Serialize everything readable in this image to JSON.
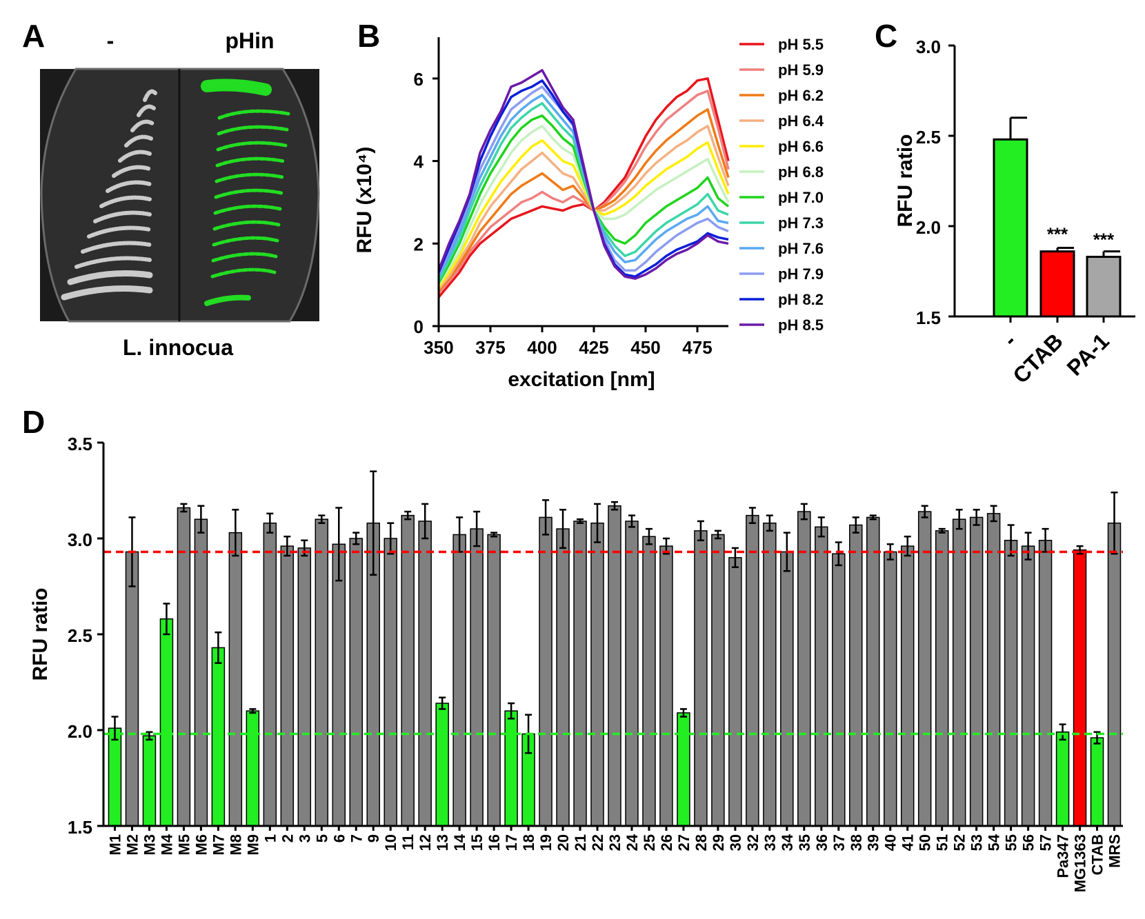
{
  "panelA": {
    "label": "A",
    "left_label": "-",
    "right_label": "pHin",
    "caption": "L. innocua"
  },
  "colors": {
    "green": "#22ee22",
    "red": "#ff0000",
    "grey": "#808080",
    "plate_growth_left": "#dcdcdc",
    "plate_growth_right": "#22dd22"
  },
  "chart_data": [
    {
      "id": "B",
      "label": "B",
      "type": "line",
      "xlabel": "excitation [nm]",
      "ylabel": "RFU (x10⁴)",
      "xlim": [
        350,
        490
      ],
      "ylim": [
        0,
        7
      ],
      "xticks": [
        "350",
        "375",
        "400",
        "425",
        "450",
        "475"
      ],
      "yticks": [
        "0",
        "2",
        "4",
        "6"
      ],
      "x": [
        350,
        355,
        360,
        365,
        370,
        375,
        380,
        385,
        390,
        395,
        400,
        405,
        410,
        415,
        420,
        425,
        430,
        435,
        440,
        445,
        450,
        455,
        460,
        465,
        470,
        475,
        480,
        485,
        490
      ],
      "legend_position": "right",
      "series": [
        {
          "name": "pH 5.5",
          "color": "#e8141b",
          "values": [
            0.7,
            1.0,
            1.3,
            1.7,
            2.0,
            2.2,
            2.4,
            2.6,
            2.7,
            2.8,
            2.9,
            2.85,
            2.8,
            2.9,
            2.95,
            2.8,
            3.0,
            3.3,
            3.6,
            4.1,
            4.6,
            5.0,
            5.3,
            5.55,
            5.7,
            5.95,
            6.0,
            5.0,
            4.0
          ]
        },
        {
          "name": "pH 5.9",
          "color": "#f08080",
          "values": [
            0.8,
            1.1,
            1.4,
            1.8,
            2.1,
            2.4,
            2.6,
            2.8,
            3.0,
            3.1,
            3.25,
            3.1,
            3.0,
            3.15,
            3.0,
            2.8,
            2.95,
            3.2,
            3.5,
            3.9,
            4.35,
            4.7,
            5.0,
            5.2,
            5.4,
            5.6,
            5.7,
            4.8,
            3.8
          ]
        },
        {
          "name": "pH 6.2",
          "color": "#ef7a16",
          "values": [
            0.85,
            1.15,
            1.5,
            1.9,
            2.3,
            2.6,
            2.9,
            3.2,
            3.4,
            3.55,
            3.7,
            3.5,
            3.3,
            3.4,
            3.1,
            2.8,
            2.9,
            3.05,
            3.3,
            3.6,
            3.95,
            4.25,
            4.5,
            4.7,
            4.9,
            5.1,
            5.25,
            4.4,
            3.6
          ]
        },
        {
          "name": "pH 6.4",
          "color": "#f4b183",
          "values": [
            0.9,
            1.2,
            1.6,
            2.0,
            2.5,
            2.9,
            3.2,
            3.5,
            3.8,
            4.0,
            4.2,
            3.95,
            3.7,
            3.6,
            3.2,
            2.8,
            2.8,
            2.95,
            3.15,
            3.4,
            3.7,
            3.95,
            4.15,
            4.35,
            4.5,
            4.7,
            4.85,
            4.1,
            3.4
          ]
        },
        {
          "name": "pH 6.6",
          "color": "#ffee00",
          "values": [
            0.95,
            1.3,
            1.7,
            2.2,
            2.7,
            3.1,
            3.5,
            3.8,
            4.1,
            4.35,
            4.5,
            4.25,
            4.0,
            3.9,
            3.35,
            2.8,
            2.7,
            2.8,
            2.95,
            3.15,
            3.4,
            3.6,
            3.8,
            3.95,
            4.1,
            4.3,
            4.45,
            3.8,
            3.2
          ]
        },
        {
          "name": "pH 6.8",
          "color": "#c6f0c0",
          "values": [
            1.0,
            1.4,
            1.8,
            2.4,
            2.95,
            3.4,
            3.8,
            4.2,
            4.5,
            4.7,
            4.85,
            4.55,
            4.3,
            4.15,
            3.45,
            2.8,
            2.6,
            2.6,
            2.7,
            2.9,
            3.1,
            3.3,
            3.45,
            3.6,
            3.75,
            3.9,
            4.05,
            3.5,
            3.0
          ]
        },
        {
          "name": "pH 7.0",
          "color": "#1fd41f",
          "values": [
            1.05,
            1.5,
            2.0,
            2.6,
            3.2,
            3.7,
            4.1,
            4.5,
            4.8,
            5.0,
            5.1,
            4.85,
            4.55,
            4.35,
            3.55,
            2.8,
            2.4,
            2.1,
            2.0,
            2.2,
            2.5,
            2.7,
            2.9,
            3.05,
            3.2,
            3.35,
            3.6,
            3.1,
            2.9
          ]
        },
        {
          "name": "pH 7.3",
          "color": "#3cd6a8",
          "values": [
            1.1,
            1.6,
            2.1,
            2.8,
            3.4,
            3.9,
            4.4,
            4.8,
            5.05,
            5.25,
            5.4,
            5.1,
            4.8,
            4.55,
            3.65,
            2.8,
            2.3,
            1.95,
            1.7,
            1.8,
            2.05,
            2.3,
            2.5,
            2.65,
            2.8,
            2.95,
            3.2,
            2.8,
            2.7
          ]
        },
        {
          "name": "pH 7.6",
          "color": "#5aa9f0",
          "values": [
            1.2,
            1.7,
            2.25,
            2.95,
            3.6,
            4.1,
            4.6,
            5.0,
            5.25,
            5.45,
            5.6,
            5.3,
            5.0,
            4.7,
            3.75,
            2.8,
            2.2,
            1.8,
            1.55,
            1.6,
            1.85,
            2.1,
            2.3,
            2.45,
            2.6,
            2.7,
            2.9,
            2.55,
            2.5
          ]
        },
        {
          "name": "pH 7.9",
          "color": "#8c9cf0",
          "values": [
            1.25,
            1.8,
            2.4,
            3.05,
            3.8,
            4.3,
            4.8,
            5.25,
            5.45,
            5.65,
            5.8,
            5.5,
            5.2,
            4.85,
            3.8,
            2.8,
            2.1,
            1.6,
            1.35,
            1.35,
            1.55,
            1.8,
            2.0,
            2.2,
            2.35,
            2.5,
            2.6,
            2.4,
            2.3
          ]
        },
        {
          "name": "pH 8.2",
          "color": "#0a1ed8",
          "values": [
            1.3,
            1.9,
            2.5,
            3.15,
            4.0,
            4.6,
            5.1,
            5.55,
            5.7,
            5.8,
            5.95,
            5.6,
            5.2,
            4.9,
            3.85,
            2.8,
            2.0,
            1.5,
            1.25,
            1.2,
            1.35,
            1.5,
            1.7,
            1.85,
            1.95,
            2.05,
            2.25,
            2.15,
            2.1
          ]
        },
        {
          "name": "pH 8.5",
          "color": "#6a1aa8",
          "values": [
            1.35,
            2.0,
            2.55,
            3.2,
            4.2,
            4.75,
            5.2,
            5.8,
            5.9,
            6.05,
            6.2,
            5.75,
            5.3,
            5.0,
            3.9,
            2.8,
            1.95,
            1.45,
            1.2,
            1.15,
            1.25,
            1.4,
            1.6,
            1.75,
            1.85,
            2.0,
            2.2,
            2.05,
            2.0
          ]
        }
      ]
    },
    {
      "id": "C",
      "label": "C",
      "type": "bar",
      "ylabel": "RFU ratio",
      "ylim": [
        1.5,
        3.0
      ],
      "yticks": [
        "1.5",
        "2.0",
        "2.5",
        "3.0"
      ],
      "categories": [
        "-",
        "CTAB",
        "PA-1"
      ],
      "values": [
        2.48,
        1.86,
        1.83
      ],
      "errors": [
        0.12,
        0.02,
        0.03
      ],
      "bar_colors": [
        "#22ee22",
        "#ff0000",
        "#a6a6a6"
      ],
      "annotations": [
        "",
        "***",
        "***"
      ]
    },
    {
      "id": "D",
      "label": "D",
      "type": "bar",
      "ylabel": "RFU ratio",
      "ylim": [
        1.5,
        3.5
      ],
      "yticks": [
        "1.5",
        "2.0",
        "2.5",
        "3.0",
        "3.5"
      ],
      "reference_lines": [
        {
          "value": 2.93,
          "color": "#ff0000"
        },
        {
          "value": 1.98,
          "color": "#22ee22"
        }
      ],
      "categories": [
        "M1",
        "M2",
        "M3",
        "M4",
        "M5",
        "M6",
        "M7",
        "M8",
        "M9",
        "1",
        "2",
        "3",
        "5",
        "6",
        "7",
        "9",
        "10",
        "11",
        "12",
        "13",
        "14",
        "15",
        "16",
        "17",
        "18",
        "19",
        "20",
        "21",
        "22",
        "23",
        "24",
        "25",
        "26",
        "27",
        "28",
        "29",
        "30",
        "32",
        "33",
        "34",
        "35",
        "36",
        "37",
        "38",
        "39",
        "40",
        "41",
        "50",
        "51",
        "52",
        "53",
        "54",
        "55",
        "56",
        "57",
        "Pa347",
        "MG1363",
        "CTAB",
        "MRS"
      ],
      "values": [
        2.01,
        2.93,
        1.97,
        2.58,
        3.16,
        3.1,
        2.43,
        3.03,
        2.1,
        3.08,
        2.96,
        2.95,
        3.1,
        2.97,
        3.0,
        3.08,
        3.0,
        3.12,
        3.09,
        2.14,
        3.02,
        3.05,
        3.02,
        2.1,
        1.98,
        3.11,
        3.05,
        3.09,
        3.08,
        3.17,
        3.09,
        3.01,
        2.96,
        2.09,
        3.04,
        3.02,
        2.9,
        3.12,
        3.08,
        2.93,
        3.14,
        3.06,
        2.92,
        3.07,
        3.11,
        2.93,
        2.96,
        3.14,
        3.04,
        3.1,
        3.11,
        3.13,
        2.99,
        2.96,
        2.99,
        1.99,
        2.94,
        1.96,
        3.08
      ],
      "errors": [
        0.06,
        0.18,
        0.02,
        0.08,
        0.02,
        0.07,
        0.08,
        0.12,
        0.01,
        0.05,
        0.05,
        0.04,
        0.02,
        0.19,
        0.03,
        0.27,
        0.08,
        0.02,
        0.09,
        0.03,
        0.09,
        0.09,
        0.01,
        0.04,
        0.1,
        0.09,
        0.1,
        0.01,
        0.1,
        0.02,
        0.03,
        0.04,
        0.04,
        0.02,
        0.05,
        0.02,
        0.05,
        0.04,
        0.04,
        0.1,
        0.04,
        0.05,
        0.06,
        0.04,
        0.01,
        0.04,
        0.05,
        0.03,
        0.01,
        0.05,
        0.04,
        0.04,
        0.08,
        0.07,
        0.06,
        0.04,
        0.02,
        0.03,
        0.16
      ],
      "bar_colors": [
        "#22ee22",
        "#808080",
        "#22ee22",
        "#22ee22",
        "#808080",
        "#808080",
        "#22ee22",
        "#808080",
        "#22ee22",
        "#808080",
        "#808080",
        "#808080",
        "#808080",
        "#808080",
        "#808080",
        "#808080",
        "#808080",
        "#808080",
        "#808080",
        "#22ee22",
        "#808080",
        "#808080",
        "#808080",
        "#22ee22",
        "#22ee22",
        "#808080",
        "#808080",
        "#808080",
        "#808080",
        "#808080",
        "#808080",
        "#808080",
        "#808080",
        "#22ee22",
        "#808080",
        "#808080",
        "#808080",
        "#808080",
        "#808080",
        "#808080",
        "#808080",
        "#808080",
        "#808080",
        "#808080",
        "#808080",
        "#808080",
        "#808080",
        "#808080",
        "#808080",
        "#808080",
        "#808080",
        "#808080",
        "#808080",
        "#808080",
        "#808080",
        "#22ee22",
        "#ff0000",
        "#22ee22",
        "#808080"
      ]
    }
  ]
}
